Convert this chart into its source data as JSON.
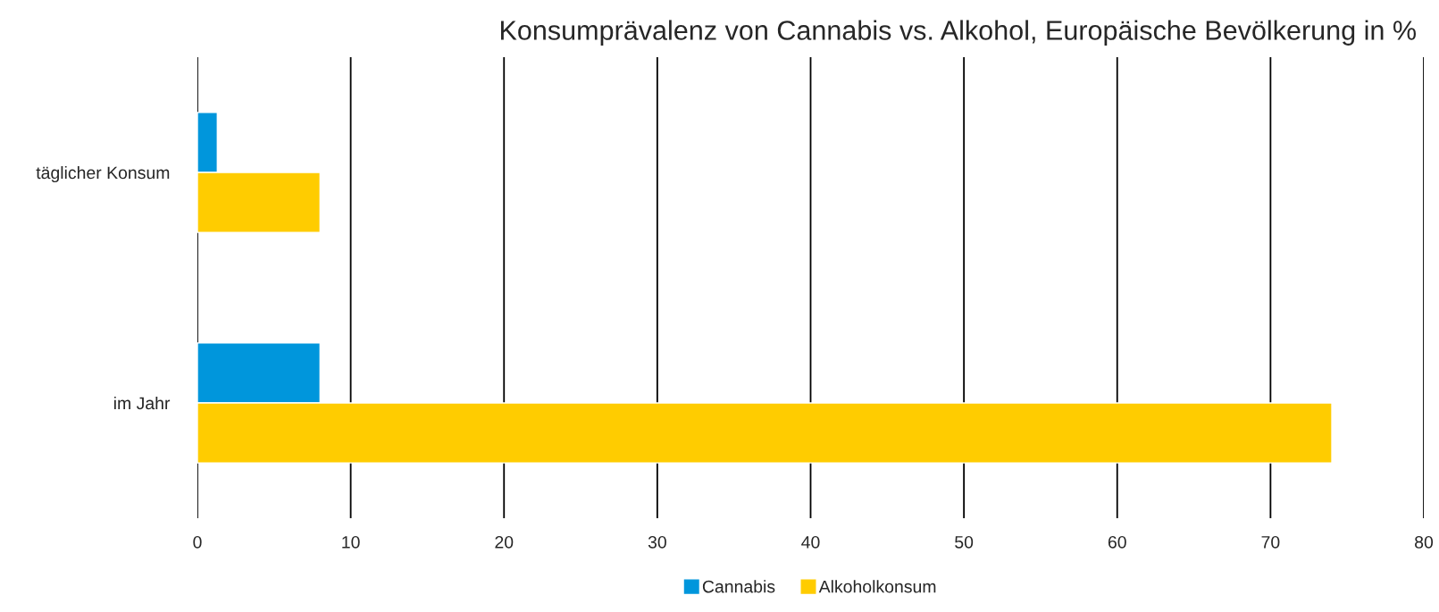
{
  "chart_data": {
    "type": "bar",
    "orientation": "horizontal",
    "title": "Konsumprävalenz von Cannabis vs. Alkohol, Europäische Bevölkerung in %",
    "categories": [
      "täglicher Konsum",
      "im Jahr"
    ],
    "series": [
      {
        "name": "Cannabis",
        "color": "#0096dc",
        "values": [
          1.3,
          8
        ]
      },
      {
        "name": "Alkoholkonsum",
        "color": "#ffcc00",
        "values": [
          8,
          74
        ]
      }
    ],
    "xlim": [
      0,
      80
    ],
    "xticks": [
      0,
      10,
      20,
      30,
      40,
      50,
      60,
      70,
      80
    ],
    "grid": "x",
    "legend": "bottom"
  }
}
